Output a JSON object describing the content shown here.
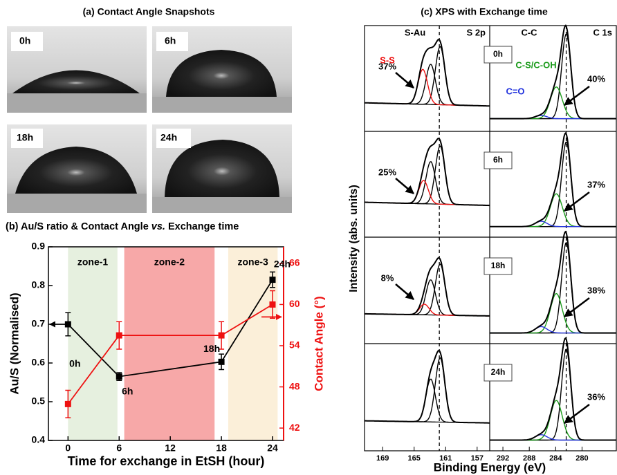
{
  "panel_a": {
    "title": "(a) Contact Angle Snapshots",
    "labels": [
      "0h",
      "6h",
      "18h",
      "24h"
    ]
  },
  "chart_data": {
    "type": "line",
    "title": "(b) Au/S ratio & Contact Angle",
    "title_italic": "vs.",
    "title_end": "Exchange time",
    "xlabel": "Time for exchange in EtSH (hour)",
    "ylabel": "Au/S (Normalised)",
    "y2label": "Contact Angle (°)",
    "x": [
      0,
      6,
      18,
      24
    ],
    "xlim": [
      -2.3,
      25.3
    ],
    "xticks": [
      0,
      6,
      12,
      18,
      24
    ],
    "ylim": [
      0.4,
      0.9
    ],
    "yticks": [
      0.4,
      0.5,
      0.6,
      0.7,
      0.8,
      0.9
    ],
    "y2lim": [
      40.2,
      68.4
    ],
    "y2ticks": [
      42,
      48,
      54,
      60,
      66
    ],
    "series": [
      {
        "color": "#000000",
        "values": [
          0.7,
          0.565,
          0.603,
          0.815
        ],
        "errors": [
          0.03,
          0.01,
          0.02,
          0.02
        ]
      },
      {
        "color": "#ee1111",
        "axis": "y2",
        "values": [
          45.5,
          55.5,
          55.5,
          60
        ],
        "errors": [
          2,
          2,
          2,
          2
        ]
      }
    ],
    "point_labels": [
      "0h",
      "6h",
      "18h",
      "24h"
    ],
    "zones": [
      {
        "label": "zone-1",
        "range": [
          0,
          5.8
        ],
        "color": "#e6f0df"
      },
      {
        "label": "zone-2",
        "range": [
          6.6,
          17.2
        ],
        "color": "#f7a8a8"
      },
      {
        "label": "zone-3",
        "range": [
          18.8,
          24.6
        ],
        "color": "#fbefd9"
      }
    ]
  },
  "xps": {
    "title": "(c) XPS with Exchange time",
    "xlabel": "Binding Energy (eV)",
    "ylabel": "Intensity (abs. units)",
    "s2p": {
      "label": "S 2p",
      "xlim": [
        171.3,
        155.4
      ],
      "xticks": [
        169,
        165,
        161,
        157
      ],
      "dashed": 161.8,
      "labels": [
        {
          "text": "S-Au",
          "color": "#000000"
        },
        {
          "text": "S-S",
          "color": "#ee1111"
        }
      ]
    },
    "c1s": {
      "label": "C 1s",
      "xlim": [
        294,
        274.8
      ],
      "xticks": [
        292,
        288,
        284,
        280
      ],
      "dashed": 282.4,
      "labels": [
        {
          "text": "C-C",
          "color": "#000000"
        },
        {
          "text": "C-S/C-OH",
          "color": "#1a9a1a"
        },
        {
          "text": "C=O",
          "color": "#2233dd"
        }
      ]
    },
    "rows": [
      {
        "time": "0h",
        "s2p": {
          "percent": "37%",
          "baseline": [
            0.27,
            0.24
          ],
          "peaks": [
            {
              "center": 161.7,
              "height": 0.55,
              "width": 0.6,
              "color": "#000000"
            },
            {
              "center": 162.9,
              "height": 0.38,
              "width": 0.6,
              "color": "#000000"
            },
            {
              "center": 163.9,
              "height": 0.33,
              "width": 0.6,
              "color": "#ee1111"
            }
          ]
        },
        "c1s": {
          "percent": "40%",
          "baseline": [
            0.12,
            0.12
          ],
          "peaks": [
            {
              "center": 282.4,
              "height": 0.8,
              "width": 0.7,
              "color": "#000000"
            },
            {
              "center": 283.9,
              "height": 0.3,
              "width": 0.9,
              "color": "#1a9a1a"
            },
            {
              "center": 286.2,
              "height": 0.03,
              "width": 0.9,
              "color": "#2233dd"
            }
          ]
        }
      },
      {
        "time": "6h",
        "s2p": {
          "percent": "25%",
          "baseline": [
            0.33,
            0.3
          ],
          "peaks": [
            {
              "center": 161.7,
              "height": 0.55,
              "width": 0.6,
              "color": "#000000"
            },
            {
              "center": 162.9,
              "height": 0.4,
              "width": 0.6,
              "color": "#000000"
            },
            {
              "center": 163.8,
              "height": 0.22,
              "width": 0.6,
              "color": "#ee1111"
            }
          ]
        },
        "c1s": {
          "percent": "37%",
          "baseline": [
            0.1,
            0.1
          ],
          "peaks": [
            {
              "center": 282.4,
              "height": 0.8,
              "width": 0.7,
              "color": "#000000"
            },
            {
              "center": 283.9,
              "height": 0.31,
              "width": 0.9,
              "color": "#1a9a1a"
            },
            {
              "center": 286.2,
              "height": 0.05,
              "width": 0.9,
              "color": "#2233dd"
            }
          ]
        }
      },
      {
        "time": "18h",
        "s2p": {
          "percent": "8%",
          "baseline": [
            0.28,
            0.26
          ],
          "peaks": [
            {
              "center": 161.7,
              "height": 0.48,
              "width": 0.6,
              "color": "#000000"
            },
            {
              "center": 162.9,
              "height": 0.33,
              "width": 0.6,
              "color": "#000000"
            },
            {
              "center": 163.7,
              "height": 0.1,
              "width": 0.6,
              "color": "#ee1111"
            }
          ]
        },
        "c1s": {
          "percent": "38%",
          "baseline": [
            0.1,
            0.1
          ],
          "peaks": [
            {
              "center": 282.4,
              "height": 0.85,
              "width": 0.7,
              "color": "#000000"
            },
            {
              "center": 283.9,
              "height": 0.37,
              "width": 0.9,
              "color": "#1a9a1a"
            },
            {
              "center": 286.2,
              "height": 0.06,
              "width": 0.9,
              "color": "#2233dd"
            }
          ]
        }
      },
      {
        "time": "24h",
        "s2p": {
          "baseline": [
            0.28,
            0.26
          ],
          "peaks": [
            {
              "center": 161.7,
              "height": 0.6,
              "width": 0.6,
              "color": "#000000"
            },
            {
              "center": 162.9,
              "height": 0.4,
              "width": 0.6,
              "color": "#000000"
            }
          ]
        },
        "c1s": {
          "percent": "36%",
          "baseline": [
            0.1,
            0.1
          ],
          "peaks": [
            {
              "center": 282.4,
              "height": 0.85,
              "width": 0.7,
              "color": "#000000"
            },
            {
              "center": 283.9,
              "height": 0.37,
              "width": 0.9,
              "color": "#1a9a1a"
            },
            {
              "center": 286.2,
              "height": 0.05,
              "width": 0.9,
              "color": "#2233dd"
            }
          ]
        }
      }
    ]
  }
}
